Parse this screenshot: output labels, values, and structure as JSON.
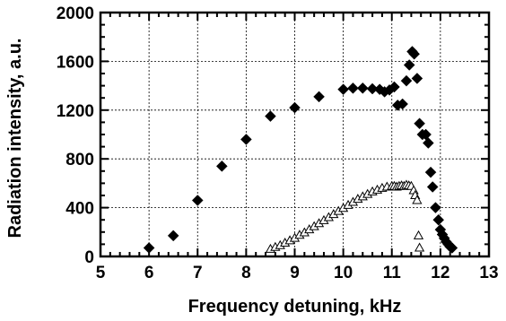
{
  "chart_data": {
    "type": "scatter",
    "title": "",
    "xlabel": "Frequency detuning, kHz",
    "ylabel": "Radiation intensity, a.u.",
    "xlim": [
      5,
      13
    ],
    "ylim": [
      0,
      2000
    ],
    "x_ticks": [
      5,
      6,
      7,
      8,
      9,
      10,
      11,
      12,
      13
    ],
    "y_ticks": [
      0,
      400,
      800,
      1200,
      1600,
      2000
    ],
    "grid": true,
    "legend": "none",
    "series": [
      {
        "marker": "filled-diamond",
        "color": "#000000",
        "points": [
          [
            6.0,
            70
          ],
          [
            6.5,
            170
          ],
          [
            7.0,
            460
          ],
          [
            7.5,
            740
          ],
          [
            8.0,
            960
          ],
          [
            8.5,
            1150
          ],
          [
            9.0,
            1220
          ],
          [
            9.5,
            1310
          ],
          [
            10.0,
            1370
          ],
          [
            10.2,
            1380
          ],
          [
            10.4,
            1380
          ],
          [
            10.6,
            1375
          ],
          [
            10.75,
            1370
          ],
          [
            10.85,
            1350
          ],
          [
            10.95,
            1365
          ],
          [
            11.05,
            1390
          ],
          [
            11.12,
            1240
          ],
          [
            11.22,
            1250
          ],
          [
            11.3,
            1440
          ],
          [
            11.36,
            1570
          ],
          [
            11.42,
            1680
          ],
          [
            11.46,
            1660
          ],
          [
            11.52,
            1460
          ],
          [
            11.57,
            1090
          ],
          [
            11.63,
            1000
          ],
          [
            11.7,
            1000
          ],
          [
            11.75,
            930
          ],
          [
            11.8,
            690
          ],
          [
            11.84,
            570
          ],
          [
            11.9,
            400
          ],
          [
            11.96,
            300
          ],
          [
            12.0,
            220
          ],
          [
            12.04,
            180
          ],
          [
            12.08,
            150
          ],
          [
            12.12,
            120
          ],
          [
            12.16,
            100
          ],
          [
            12.2,
            80
          ],
          [
            12.24,
            70
          ]
        ]
      },
      {
        "marker": "open-triangle",
        "color": "#000000",
        "points": [
          [
            8.5,
            60
          ],
          [
            8.6,
            75
          ],
          [
            8.7,
            90
          ],
          [
            8.8,
            110
          ],
          [
            8.9,
            130
          ],
          [
            9.0,
            150
          ],
          [
            9.1,
            175
          ],
          [
            9.2,
            195
          ],
          [
            9.3,
            220
          ],
          [
            9.4,
            245
          ],
          [
            9.5,
            270
          ],
          [
            9.6,
            295
          ],
          [
            9.7,
            320
          ],
          [
            9.8,
            345
          ],
          [
            9.9,
            370
          ],
          [
            10.0,
            395
          ],
          [
            10.1,
            420
          ],
          [
            10.2,
            445
          ],
          [
            10.3,
            470
          ],
          [
            10.4,
            490
          ],
          [
            10.5,
            510
          ],
          [
            10.6,
            530
          ],
          [
            10.7,
            545
          ],
          [
            10.8,
            560
          ],
          [
            10.9,
            570
          ],
          [
            11.0,
            575
          ],
          [
            11.05,
            575
          ],
          [
            11.1,
            570
          ],
          [
            11.15,
            575
          ],
          [
            11.2,
            580
          ],
          [
            11.25,
            575
          ],
          [
            11.3,
            585
          ],
          [
            11.35,
            580
          ],
          [
            11.4,
            575
          ],
          [
            11.45,
            540
          ],
          [
            11.48,
            500
          ],
          [
            11.52,
            460
          ],
          [
            11.55,
            170
          ],
          [
            11.57,
            70
          ]
        ]
      }
    ]
  }
}
